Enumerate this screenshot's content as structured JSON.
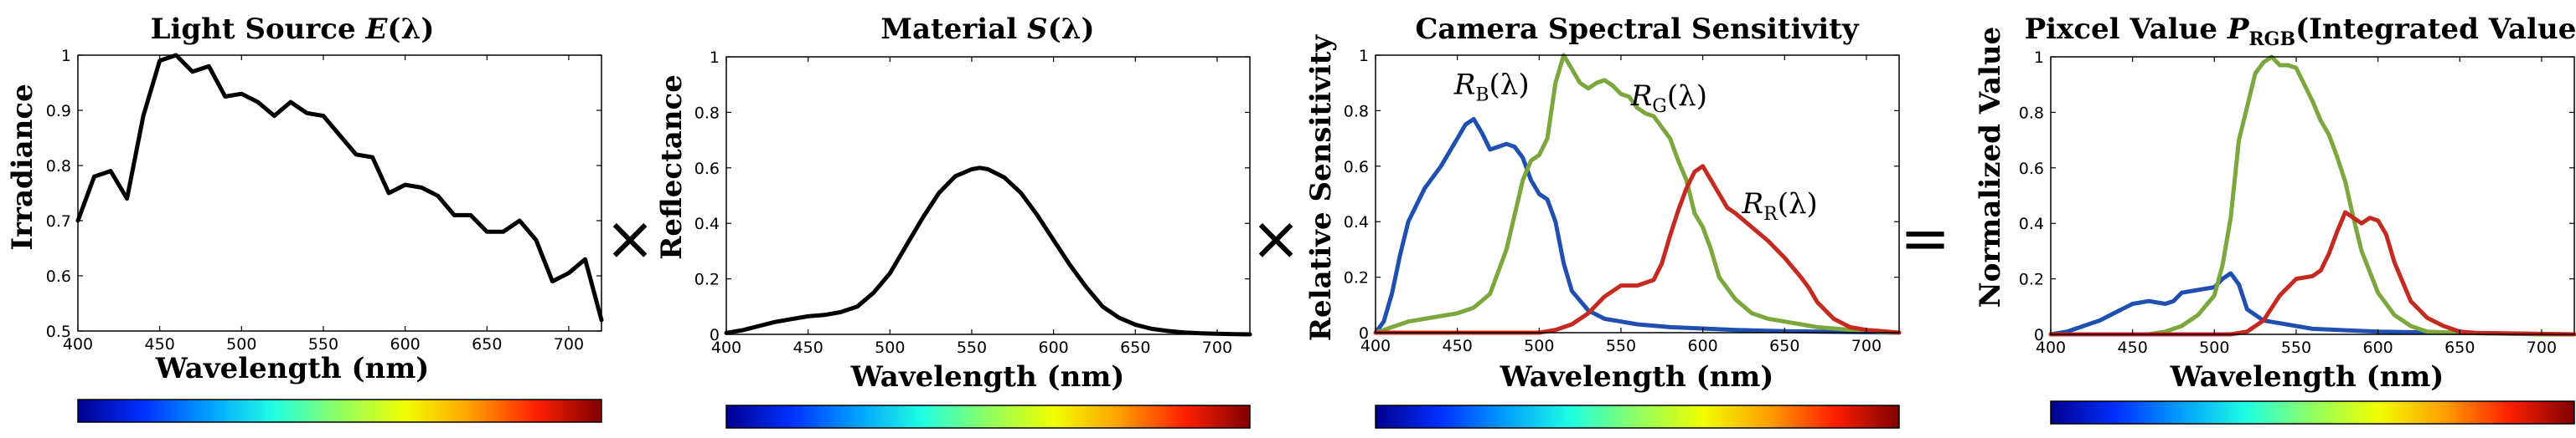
{
  "chart_data": [
    {
      "type": "line",
      "title": "Light Source E(λ)",
      "title_parts": [
        "Light Source ",
        "E",
        "(λ)"
      ],
      "xlabel": "Wavelength (nm)",
      "ylabel": "Irradiance",
      "xlim": [
        400,
        720
      ],
      "ylim": [
        0.5,
        1.0
      ],
      "xticks": [
        400,
        450,
        500,
        550,
        600,
        650,
        700
      ],
      "yticks": [
        0.5,
        0.6,
        0.7,
        0.8,
        0.9,
        1.0
      ],
      "ytick_labels": [
        "0.5",
        "0.6",
        "0.7",
        "0.8",
        "0.9",
        "1"
      ],
      "series": [
        {
          "name": "E(λ)",
          "color": "#000000",
          "x": [
            400,
            410,
            420,
            430,
            440,
            450,
            460,
            470,
            480,
            490,
            500,
            510,
            520,
            530,
            540,
            550,
            560,
            570,
            580,
            590,
            600,
            610,
            620,
            630,
            640,
            650,
            660,
            670,
            680,
            690,
            700,
            710,
            720
          ],
          "values": [
            0.7,
            0.78,
            0.79,
            0.74,
            0.89,
            0.99,
            1.0,
            0.97,
            0.98,
            0.925,
            0.93,
            0.915,
            0.89,
            0.915,
            0.895,
            0.89,
            0.855,
            0.82,
            0.815,
            0.75,
            0.765,
            0.76,
            0.745,
            0.71,
            0.71,
            0.68,
            0.68,
            0.7,
            0.665,
            0.59,
            0.605,
            0.63,
            0.52
          ]
        }
      ]
    },
    {
      "type": "line",
      "title": "Material S(λ)",
      "title_parts": [
        "Material ",
        "S",
        "(λ)"
      ],
      "xlabel": "Wavelength (nm)",
      "ylabel": "Reflectance",
      "xlim": [
        400,
        720
      ],
      "ylim": [
        0,
        1
      ],
      "xticks": [
        400,
        450,
        500,
        550,
        600,
        650,
        700
      ],
      "yticks": [
        0,
        0.2,
        0.4,
        0.6,
        0.8,
        1.0
      ],
      "ytick_labels": [
        "0",
        "0.2",
        "0.4",
        "0.6",
        "0.8",
        "1"
      ],
      "series": [
        {
          "name": "S(λ)",
          "color": "#000000",
          "x": [
            400,
            410,
            420,
            430,
            440,
            450,
            460,
            470,
            480,
            490,
            500,
            510,
            520,
            530,
            540,
            550,
            555,
            560,
            570,
            580,
            590,
            600,
            610,
            620,
            630,
            640,
            650,
            660,
            670,
            680,
            690,
            700,
            710,
            720
          ],
          "values": [
            0.005,
            0.015,
            0.03,
            0.045,
            0.055,
            0.065,
            0.07,
            0.08,
            0.1,
            0.15,
            0.22,
            0.32,
            0.42,
            0.51,
            0.57,
            0.595,
            0.6,
            0.595,
            0.565,
            0.51,
            0.43,
            0.34,
            0.25,
            0.17,
            0.1,
            0.06,
            0.035,
            0.02,
            0.012,
            0.007,
            0.004,
            0.002,
            0.001,
            0.0
          ]
        }
      ]
    },
    {
      "type": "line",
      "title": "Camera Spectral Sensitivity",
      "xlabel": "Wavelength (nm)",
      "ylabel": "Relative Sensitivity",
      "xlim": [
        400,
        720
      ],
      "ylim": [
        0,
        1
      ],
      "xticks": [
        400,
        450,
        500,
        550,
        600,
        650,
        700
      ],
      "yticks": [
        0,
        0.2,
        0.4,
        0.6,
        0.8,
        1.0
      ],
      "ytick_labels": [
        "0",
        "0.2",
        "0.4",
        "0.6",
        "0.8",
        "1"
      ],
      "annotations": [
        {
          "base": "R",
          "sub": "B",
          "tail": "(λ)",
          "x": 448,
          "y": 0.86
        },
        {
          "base": "R",
          "sub": "G",
          "tail": "(λ)",
          "x": 556,
          "y": 0.82
        },
        {
          "base": "R",
          "sub": "R",
          "tail": "(λ)",
          "x": 624,
          "y": 0.43
        }
      ],
      "series": [
        {
          "name": "R_B(λ)",
          "color": "#1f4fb0",
          "x": [
            400,
            405,
            410,
            415,
            420,
            430,
            440,
            450,
            455,
            460,
            465,
            470,
            475,
            480,
            485,
            490,
            495,
            500,
            505,
            510,
            515,
            520,
            530,
            540,
            550,
            560,
            580,
            600,
            620,
            650,
            680,
            720
          ],
          "values": [
            0.0,
            0.04,
            0.14,
            0.28,
            0.4,
            0.52,
            0.6,
            0.7,
            0.75,
            0.77,
            0.72,
            0.66,
            0.67,
            0.68,
            0.67,
            0.63,
            0.55,
            0.5,
            0.48,
            0.4,
            0.25,
            0.15,
            0.08,
            0.05,
            0.04,
            0.03,
            0.02,
            0.015,
            0.01,
            0.005,
            0.003,
            0.0
          ]
        },
        {
          "name": "R_G(λ)",
          "color": "#7ba73d",
          "x": [
            400,
            410,
            420,
            430,
            440,
            450,
            460,
            470,
            480,
            490,
            495,
            500,
            505,
            510,
            515,
            520,
            525,
            530,
            535,
            540,
            545,
            550,
            555,
            560,
            565,
            570,
            575,
            580,
            585,
            590,
            595,
            600,
            605,
            610,
            620,
            630,
            640,
            650,
            660,
            670,
            680,
            700,
            720
          ],
          "values": [
            0.0,
            0.02,
            0.04,
            0.05,
            0.06,
            0.07,
            0.09,
            0.14,
            0.3,
            0.55,
            0.62,
            0.64,
            0.7,
            0.9,
            1.0,
            0.95,
            0.9,
            0.88,
            0.9,
            0.91,
            0.89,
            0.86,
            0.85,
            0.81,
            0.79,
            0.78,
            0.74,
            0.7,
            0.62,
            0.55,
            0.43,
            0.38,
            0.3,
            0.2,
            0.12,
            0.07,
            0.05,
            0.04,
            0.03,
            0.02,
            0.015,
            0.005,
            0.0
          ]
        },
        {
          "name": "R_R(λ)",
          "color": "#c42a1f",
          "x": [
            400,
            500,
            510,
            520,
            530,
            540,
            550,
            560,
            570,
            575,
            580,
            585,
            590,
            595,
            600,
            605,
            610,
            615,
            620,
            630,
            640,
            650,
            660,
            665,
            670,
            680,
            690,
            700,
            710,
            720
          ],
          "values": [
            0.0,
            0.0,
            0.01,
            0.03,
            0.07,
            0.13,
            0.17,
            0.17,
            0.19,
            0.25,
            0.35,
            0.44,
            0.52,
            0.58,
            0.6,
            0.55,
            0.5,
            0.45,
            0.43,
            0.38,
            0.33,
            0.27,
            0.2,
            0.16,
            0.11,
            0.05,
            0.02,
            0.01,
            0.005,
            0.0
          ]
        }
      ]
    },
    {
      "type": "line",
      "title": "Pixcel Value P_RGB(Integrated Value)",
      "title_parts": [
        "Pixcel Value ",
        "P",
        "RGB",
        "(Integrated Value)"
      ],
      "xlabel": "Wavelength (nm)",
      "ylabel": "Normalized Value",
      "xlim": [
        400,
        720
      ],
      "ylim": [
        0,
        1
      ],
      "xticks": [
        400,
        450,
        500,
        550,
        600,
        650,
        700
      ],
      "yticks": [
        0,
        0.2,
        0.4,
        0.6,
        0.8,
        1.0
      ],
      "ytick_labels": [
        "0",
        "0.2",
        "0.4",
        "0.6",
        "0.8",
        "1"
      ],
      "series": [
        {
          "name": "B",
          "color": "#1f4fb0",
          "x": [
            400,
            410,
            420,
            430,
            440,
            450,
            460,
            470,
            475,
            480,
            490,
            500,
            505,
            510,
            515,
            520,
            530,
            540,
            560,
            600,
            650,
            720
          ],
          "values": [
            0.0,
            0.01,
            0.03,
            0.05,
            0.08,
            0.11,
            0.12,
            0.11,
            0.12,
            0.15,
            0.16,
            0.17,
            0.2,
            0.22,
            0.18,
            0.09,
            0.05,
            0.04,
            0.02,
            0.01,
            0.005,
            0.0
          ]
        },
        {
          "name": "G",
          "color": "#7ba73d",
          "x": [
            400,
            460,
            470,
            480,
            490,
            500,
            505,
            510,
            515,
            520,
            525,
            530,
            535,
            540,
            545,
            550,
            555,
            560,
            565,
            570,
            575,
            580,
            585,
            590,
            600,
            610,
            620,
            630,
            650,
            700,
            720
          ],
          "values": [
            0.0,
            0.0,
            0.01,
            0.03,
            0.07,
            0.14,
            0.25,
            0.42,
            0.7,
            0.82,
            0.94,
            0.98,
            1.0,
            0.97,
            0.97,
            0.96,
            0.9,
            0.84,
            0.77,
            0.72,
            0.64,
            0.55,
            0.42,
            0.3,
            0.15,
            0.07,
            0.03,
            0.01,
            0.005,
            0.0,
            0.0
          ]
        },
        {
          "name": "R",
          "color": "#c42a1f",
          "x": [
            400,
            510,
            520,
            530,
            540,
            550,
            560,
            565,
            570,
            575,
            580,
            585,
            590,
            595,
            600,
            605,
            610,
            615,
            620,
            630,
            640,
            650,
            660,
            720
          ],
          "values": [
            0.0,
            0.0,
            0.01,
            0.05,
            0.14,
            0.2,
            0.21,
            0.23,
            0.29,
            0.37,
            0.44,
            0.42,
            0.4,
            0.42,
            0.41,
            0.36,
            0.26,
            0.19,
            0.12,
            0.06,
            0.03,
            0.01,
            0.005,
            0.0
          ]
        }
      ]
    }
  ],
  "operators": [
    "×",
    "×",
    "="
  ],
  "colorbar_stops": [
    "#00008f",
    "#0030ff",
    "#00a0ff",
    "#20ffe0",
    "#90ff60",
    "#f0ff00",
    "#ffa000",
    "#ff2000",
    "#800000"
  ]
}
